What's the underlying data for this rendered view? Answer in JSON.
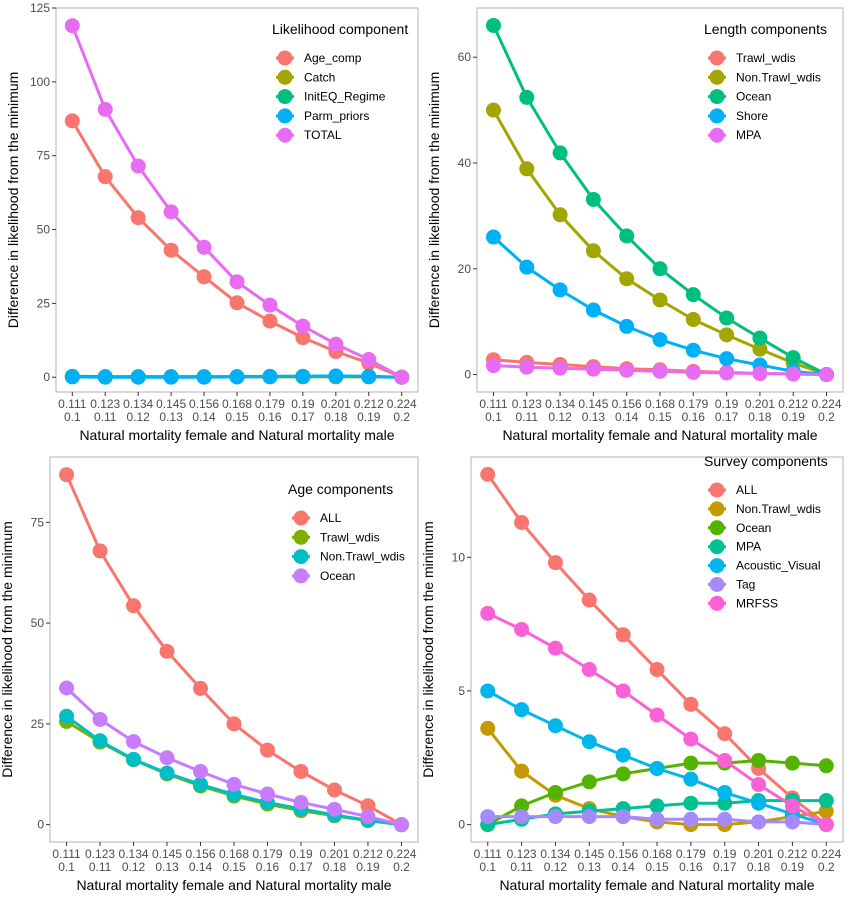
{
  "chart_data": [
    {
      "type": "line",
      "xlabel": "Natural mortality female and Natural mortality male",
      "ylabel": "Difference in likelihood from the minimum",
      "x_tick_labels_line1": [
        "0.111",
        "0.123",
        "0.134",
        "0.145",
        "0.156",
        "0.168",
        "0.179",
        "0.19",
        "0.201",
        "0.212",
        "0.224"
      ],
      "x_tick_labels_line2": [
        "0.1",
        "0.11",
        "0.12",
        "0.13",
        "0.14",
        "0.15",
        "0.16",
        "0.17",
        "0.18",
        "0.19",
        "0.2"
      ],
      "ylim": [
        -5,
        125
      ],
      "yticks": [
        0,
        25,
        50,
        75,
        100,
        125
      ],
      "grid": false,
      "legend_title": "Likelihood component",
      "legend_position": "top-right",
      "series": [
        {
          "name": "Age_comp",
          "color": "#F8766D",
          "values": [
            86.8,
            67.9,
            54.0,
            43.0,
            34.0,
            25.2,
            19.0,
            13.4,
            8.7,
            4.8,
            0
          ]
        },
        {
          "name": "Catch",
          "color": "#A3A500",
          "values": [
            0.2,
            0.1,
            0.1,
            0.1,
            0.1,
            0.1,
            0.1,
            0.1,
            0.1,
            0.1,
            0
          ]
        },
        {
          "name": "InitEQ_Regime",
          "color": "#00BF7D",
          "values": [
            0.3,
            0.2,
            0.2,
            0.2,
            0.2,
            0.2,
            0.3,
            0.3,
            0.4,
            0.3,
            0
          ]
        },
        {
          "name": "Parm_priors",
          "color": "#00B0F6",
          "values": [
            0.1,
            0.0,
            0.0,
            0.0,
            0.0,
            0.1,
            0.2,
            0.3,
            0.4,
            0.2,
            0
          ]
        },
        {
          "name": "TOTAL",
          "color": "#E76BF3",
          "values": [
            119.0,
            90.7,
            71.5,
            56.0,
            44.0,
            32.3,
            24.4,
            17.3,
            11.2,
            6.0,
            0
          ]
        }
      ]
    },
    {
      "type": "line",
      "xlabel": "Natural mortality female and Natural mortality male",
      "ylabel": "Difference in likelihood from the minimum",
      "x_tick_labels_line1": [
        "0.111",
        "0.123",
        "0.134",
        "0.145",
        "0.156",
        "0.168",
        "0.179",
        "0.19",
        "0.201",
        "0.212",
        "0.224"
      ],
      "x_tick_labels_line2": [
        "0.1",
        "0.11",
        "0.12",
        "0.13",
        "0.14",
        "0.15",
        "0.16",
        "0.17",
        "0.18",
        "0.19",
        "0.2"
      ],
      "ylim": [
        -3.3,
        69.3
      ],
      "yticks": [
        0,
        20,
        40,
        60
      ],
      "grid": false,
      "legend_title": "Length components",
      "legend_position": "top-right",
      "series": [
        {
          "name": "Trawl_wdis",
          "color": "#F8766D",
          "values": [
            2.8,
            2.3,
            1.9,
            1.5,
            1.1,
            0.9,
            0.6,
            0.4,
            0.2,
            0.1,
            0
          ]
        },
        {
          "name": "Non.Trawl_wdis",
          "color": "#A3A500",
          "values": [
            50.0,
            38.9,
            30.2,
            23.4,
            18.1,
            14.1,
            10.4,
            7.5,
            4.8,
            2.2,
            0
          ]
        },
        {
          "name": "Ocean",
          "color": "#00BF7D",
          "values": [
            66.0,
            52.4,
            41.9,
            33.1,
            26.2,
            20.0,
            15.1,
            10.7,
            6.9,
            3.2,
            0
          ]
        },
        {
          "name": "Shore",
          "color": "#00B0F6",
          "values": [
            26.0,
            20.3,
            16.0,
            12.2,
            9.1,
            6.6,
            4.6,
            3.0,
            1.8,
            0.6,
            0
          ]
        },
        {
          "name": "MPA",
          "color": "#E76BF3",
          "values": [
            1.7,
            1.4,
            1.2,
            1.0,
            0.8,
            0.6,
            0.4,
            0.3,
            0.2,
            0.1,
            0
          ]
        }
      ]
    },
    {
      "type": "line",
      "xlabel": "Natural mortality female and Natural mortality male",
      "ylabel": "Difference in likelihood from the minimum",
      "x_tick_labels_line1": [
        "0.111",
        "0.123",
        "0.134",
        "0.145",
        "0.156",
        "0.168",
        "0.179",
        "0.19",
        "0.201",
        "0.212",
        "0.224"
      ],
      "x_tick_labels_line2": [
        "0.1",
        "0.11",
        "0.12",
        "0.13",
        "0.14",
        "0.15",
        "0.16",
        "0.17",
        "0.18",
        "0.19",
        "0.2"
      ],
      "ylim": [
        -4.3,
        91.2
      ],
      "yticks": [
        0,
        25,
        50,
        75
      ],
      "grid": false,
      "legend_title": "Age components",
      "legend_position": "top-right",
      "series": [
        {
          "name": "ALL",
          "color": "#F8766D",
          "values": [
            86.8,
            67.9,
            54.3,
            43.0,
            33.8,
            25.0,
            18.5,
            13.2,
            8.6,
            4.7,
            0
          ]
        },
        {
          "name": "Trawl_wdis",
          "color": "#7CAE00",
          "values": [
            25.6,
            20.5,
            16.1,
            12.6,
            9.6,
            7.1,
            5.1,
            3.5,
            2.2,
            1.0,
            0
          ]
        },
        {
          "name": "Non.Trawl_wdis",
          "color": "#00BFC4",
          "values": [
            26.9,
            20.8,
            16.2,
            12.8,
            10.0,
            7.5,
            5.5,
            3.9,
            2.4,
            1.1,
            0
          ]
        },
        {
          "name": "Ocean",
          "color": "#C77CFF",
          "values": [
            33.9,
            26.1,
            20.6,
            16.6,
            13.2,
            10.0,
            7.6,
            5.5,
            3.8,
            2.0,
            0
          ]
        }
      ]
    },
    {
      "type": "line",
      "xlabel": "Natural mortality female and Natural mortality male",
      "ylabel": "Difference in likelihood from the minimum",
      "x_tick_labels_line1": [
        "0.111",
        "0.123",
        "0.134",
        "0.145",
        "0.156",
        "0.168",
        "0.179",
        "0.19",
        "0.201",
        "0.212",
        "0.224"
      ],
      "x_tick_labels_line2": [
        "0.1",
        "0.11",
        "0.12",
        "0.13",
        "0.14",
        "0.15",
        "0.16",
        "0.17",
        "0.18",
        "0.19",
        "0.2"
      ],
      "ylim": [
        -0.65,
        13.75
      ],
      "yticks": [
        0,
        5,
        10
      ],
      "grid": false,
      "legend_title": "Survey components",
      "legend_position": "top-right",
      "series": [
        {
          "name": "ALL",
          "color": "#F8766D",
          "values": [
            13.1,
            11.3,
            9.8,
            8.4,
            7.1,
            5.8,
            4.5,
            3.4,
            2.1,
            1.0,
            0
          ]
        },
        {
          "name": "Non.Trawl_wdis",
          "color": "#C49A00",
          "values": [
            3.6,
            2.0,
            1.1,
            0.6,
            0.3,
            0.1,
            0.0,
            0.0,
            0.1,
            0.3,
            0.5
          ]
        },
        {
          "name": "Ocean",
          "color": "#53B400",
          "values": [
            0.0,
            0.7,
            1.2,
            1.6,
            1.9,
            2.1,
            2.3,
            2.3,
            2.4,
            2.3,
            2.2
          ]
        },
        {
          "name": "MPA",
          "color": "#00C094",
          "values": [
            0.0,
            0.2,
            0.4,
            0.5,
            0.6,
            0.7,
            0.8,
            0.8,
            0.9,
            0.9,
            0.9
          ]
        },
        {
          "name": "Acoustic_Visual",
          "color": "#00B6EB",
          "values": [
            5.0,
            4.3,
            3.7,
            3.1,
            2.6,
            2.1,
            1.7,
            1.2,
            0.8,
            0.4,
            0
          ]
        },
        {
          "name": "Tag",
          "color": "#A58AFF",
          "values": [
            0.3,
            0.3,
            0.3,
            0.3,
            0.3,
            0.2,
            0.2,
            0.2,
            0.1,
            0.1,
            0
          ]
        },
        {
          "name": "MRFSS",
          "color": "#FB61D7",
          "values": [
            7.9,
            7.3,
            6.6,
            5.8,
            5.0,
            4.1,
            3.2,
            2.4,
            1.5,
            0.7,
            0
          ]
        }
      ]
    }
  ]
}
